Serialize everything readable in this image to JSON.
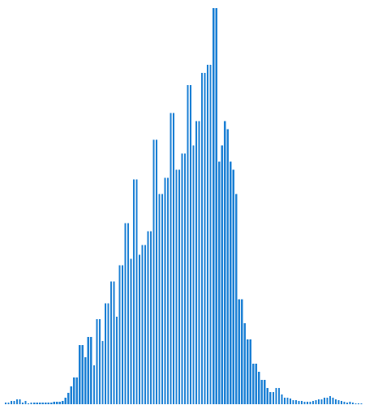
{
  "chart_data": {
    "type": "bar",
    "title": "",
    "xlabel": "",
    "ylabel": "",
    "color": "#1a7fd4",
    "grid": false,
    "legend": "none",
    "ylim": [
      0,
      500
    ],
    "values": [
      2,
      2,
      4,
      4,
      6,
      6,
      2,
      4,
      1,
      2,
      2,
      2,
      2,
      2,
      2,
      2,
      2,
      3,
      3,
      3,
      4,
      8,
      14,
      22,
      33,
      33,
      73,
      73,
      58,
      83,
      83,
      48,
      105,
      105,
      78,
      125,
      125,
      152,
      152,
      108,
      172,
      172,
      224,
      224,
      180,
      278,
      278,
      185,
      197,
      197,
      214,
      214,
      327,
      327,
      260,
      260,
      280,
      280,
      360,
      360,
      290,
      290,
      310,
      310,
      395,
      395,
      320,
      350,
      350,
      410,
      410,
      420,
      420,
      490,
      490,
      300,
      320,
      350,
      340,
      300,
      290,
      260,
      130,
      130,
      100,
      80,
      80,
      50,
      50,
      40,
      30,
      30,
      20,
      15,
      15,
      20,
      20,
      12,
      8,
      8,
      7,
      5,
      5,
      4,
      4,
      3,
      3,
      3,
      4,
      5,
      6,
      6,
      8,
      8,
      10,
      8,
      6,
      5,
      4,
      3,
      2,
      3,
      2,
      1,
      1,
      1
    ]
  }
}
